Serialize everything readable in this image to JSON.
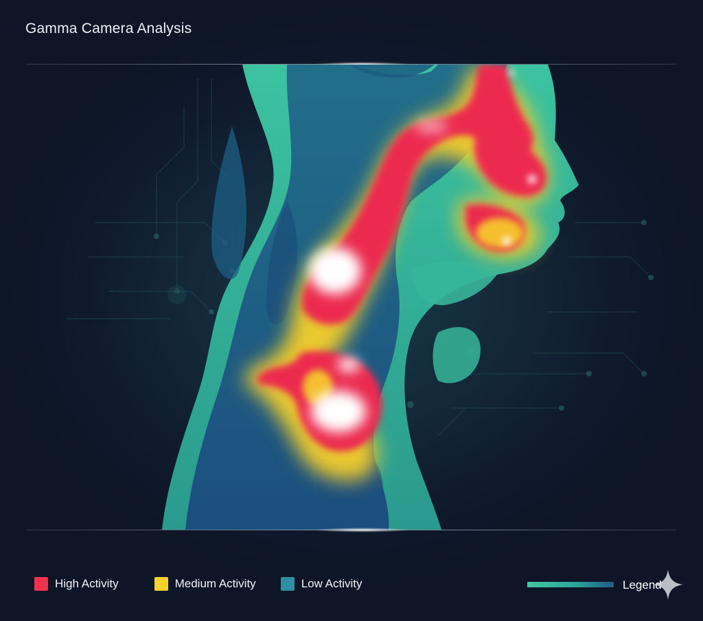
{
  "title": "Gamma Camera Analysis",
  "legend": {
    "items": [
      {
        "label": "High Activity",
        "color": "#f0324f"
      },
      {
        "label": "Medium Activity",
        "color": "#f7d22c"
      },
      {
        "label": "Low Activity",
        "color": "#2f8fa2"
      }
    ],
    "key_label": "Legend"
  },
  "scan": {
    "body_colors": {
      "outer": "#2ea38c",
      "inner": "#1f6e88",
      "deep": "#1a4f7c"
    },
    "hotspot_colors": {
      "high": "#ec2a50",
      "medium": "#f5cf2a",
      "core": "#ffffff"
    }
  }
}
